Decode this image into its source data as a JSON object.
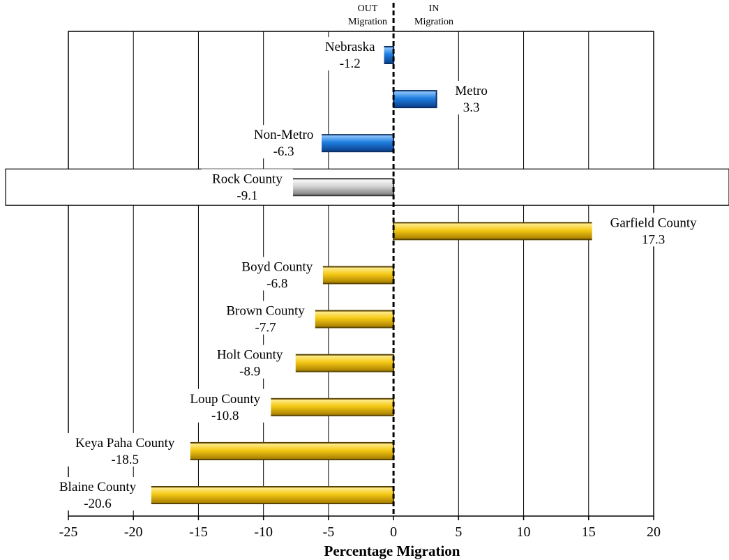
{
  "chart_data": {
    "type": "bar",
    "orientation": "horizontal",
    "xlabel": "Percentage Migration",
    "ylabel": "",
    "xlim": [
      -25,
      20
    ],
    "xticks": [
      -25,
      -20,
      -15,
      -10,
      -5,
      0,
      5,
      10,
      15,
      20
    ],
    "grid": "vertical",
    "legend": "none",
    "out_label": "OUT Migration",
    "in_label": "IN Migration",
    "highlight": "Rock County",
    "colors": {
      "blue": "#1f6fd1",
      "gray": "#c8c8c8",
      "gold": "#f2c618"
    },
    "bars": [
      {
        "name": "Nebraska",
        "value": -1.2,
        "value_label": "-1.2",
        "color": "blue"
      },
      {
        "name": "Metro",
        "value": 3.3,
        "value_label": "3.3",
        "color": "blue"
      },
      {
        "name": "Non-Metro",
        "value": -6.3,
        "value_label": "-6.3",
        "color": "blue"
      },
      {
        "name": "Rock County",
        "value": -9.1,
        "value_label": "-9.1",
        "color": "gray"
      },
      {
        "name": "Garfield County",
        "value": 17.3,
        "value_label": "17.3",
        "color": "gold"
      },
      {
        "name": "Boyd County",
        "value": -6.8,
        "value_label": "-6.8",
        "color": "gold"
      },
      {
        "name": "Brown County",
        "value": -7.7,
        "value_label": "-7.7",
        "color": "gold"
      },
      {
        "name": "Holt County",
        "value": -8.9,
        "value_label": "-8.9",
        "color": "gold"
      },
      {
        "name": "Loup County",
        "value": -10.8,
        "value_label": "-10.8",
        "color": "gold"
      },
      {
        "name": "Keya Paha County",
        "value": -18.5,
        "value_label": "-18.5",
        "color": "gold"
      },
      {
        "name": "Blaine County",
        "value": -20.6,
        "value_label": "-20.6",
        "color": "gold"
      }
    ]
  }
}
